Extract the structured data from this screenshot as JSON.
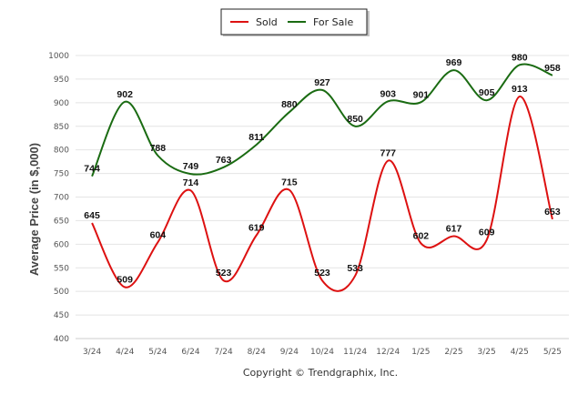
{
  "chart_data": {
    "type": "line",
    "categories": [
      "3/24",
      "4/24",
      "5/24",
      "6/24",
      "7/24",
      "8/24",
      "9/24",
      "10/24",
      "11/24",
      "12/24",
      "1/25",
      "2/25",
      "3/25",
      "4/25",
      "5/25"
    ],
    "series": [
      {
        "name": "Sold",
        "color": "#dd1111",
        "values": [
          645,
          509,
          604,
          714,
          523,
          619,
          715,
          523,
          533,
          777,
          602,
          617,
          609,
          913,
          653
        ]
      },
      {
        "name": "For Sale",
        "color": "#1a6b12",
        "values": [
          744,
          902,
          788,
          749,
          763,
          811,
          880,
          927,
          850,
          903,
          901,
          969,
          905,
          980,
          958
        ]
      }
    ],
    "ylabel": "Average Price (in $,000)",
    "ylim": [
      400,
      1000
    ],
    "yticks": [
      400,
      450,
      500,
      550,
      600,
      650,
      700,
      750,
      800,
      850,
      900,
      950,
      1000
    ],
    "grid": true,
    "legend": "top-center",
    "footer": "Copyright © Trendgraphix, Inc."
  }
}
